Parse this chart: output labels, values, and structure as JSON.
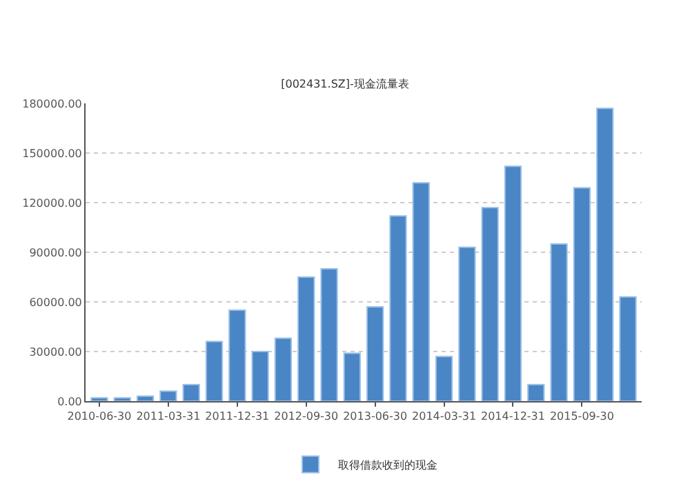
{
  "chart_data": {
    "type": "bar",
    "title": "[002431.SZ]-现金流量表",
    "categories": [
      "2010-06-30",
      null,
      null,
      "2011-03-31",
      null,
      null,
      "2011-12-31",
      null,
      null,
      "2012-09-30",
      null,
      null,
      "2013-06-30",
      null,
      null,
      "2014-03-31",
      null,
      null,
      "2014-12-31",
      null,
      null,
      "2015-09-30",
      null,
      null
    ],
    "series": [
      {
        "name": "取得借款收到的现金",
        "color": "#4a86c5",
        "values": [
          2000,
          2000,
          3000,
          6000,
          10000,
          36000,
          55000,
          30000,
          38000,
          75000,
          80000,
          29000,
          57000,
          112000,
          132000,
          27000,
          93000,
          117000,
          142000,
          10000,
          95000,
          129000,
          177000,
          63000
        ]
      }
    ],
    "ylim": [
      0,
      180000
    ],
    "yticks": [
      {
        "value": 0,
        "label": "0.00"
      },
      {
        "value": 30000,
        "label": "30000.00"
      },
      {
        "value": 60000,
        "label": "60000.00"
      },
      {
        "value": 90000,
        "label": "90000.00"
      },
      {
        "value": 120000,
        "label": "120000.00"
      },
      {
        "value": 150000,
        "label": "150000.00"
      },
      {
        "value": 180000,
        "label": "180000.00"
      }
    ],
    "grid": "y",
    "legend": "bottom"
  }
}
